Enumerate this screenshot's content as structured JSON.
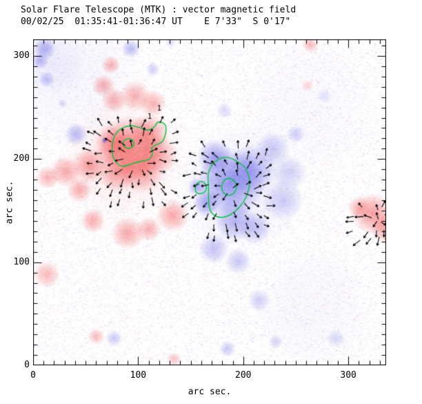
{
  "header": {
    "title": "Solar Flare Telescope (MTK) : vector magnetic field",
    "subtitle": "00/02/25  01:35:41-01:36:47 UT    E 7'33\"  S 0'17\""
  },
  "chart_data": {
    "type": "heatmap",
    "subtype": "vector-magnetogram",
    "title": "Solar Flare Telescope (MTK) : vector magnetic field",
    "subtitle": "00/02/25  01:35:41-01:36:47 UT    E 7'33\"  S 0'17\"",
    "xlabel": "arc sec.",
    "ylabel": "arc sec.",
    "xlim": [
      0,
      336
    ],
    "ylim": [
      0,
      316
    ],
    "xticks": [
      0,
      100,
      200,
      300
    ],
    "yticks": [
      0,
      100,
      200,
      300
    ],
    "minor_tick_step": 10,
    "grid": false,
    "legend": "none",
    "colors": {
      "positive_polarity": "#f04040",
      "negative_polarity": "#5454e4",
      "contour": "#00c33c",
      "vectors": "#000000",
      "axis": "#000000",
      "background": "#ffffff"
    },
    "blobs_format": [
      "x_arcsec",
      "y_arcsec",
      "radius_arcsec",
      "alpha"
    ],
    "positive_blobs": [
      [
        93,
        210,
        32,
        0.55
      ],
      [
        110,
        224,
        20,
        0.45
      ],
      [
        77,
        214,
        20,
        0.5
      ],
      [
        103,
        190,
        23,
        0.5
      ],
      [
        119,
        204,
        19,
        0.42
      ],
      [
        80,
        187,
        19,
        0.45
      ],
      [
        74,
        291,
        9,
        0.4
      ],
      [
        67,
        271,
        11,
        0.42
      ],
      [
        77,
        257,
        12,
        0.42
      ],
      [
        97,
        261,
        15,
        0.4
      ],
      [
        114,
        254,
        13,
        0.4
      ],
      [
        54,
        194,
        17,
        0.5
      ],
      [
        31,
        188,
        15,
        0.45
      ],
      [
        14,
        182,
        11,
        0.4
      ],
      [
        44,
        170,
        12,
        0.42
      ],
      [
        57,
        140,
        12,
        0.42
      ],
      [
        90,
        128,
        16,
        0.45
      ],
      [
        110,
        132,
        12,
        0.4
      ],
      [
        133,
        145,
        16,
        0.45
      ],
      [
        13,
        88,
        13,
        0.35
      ],
      [
        60,
        28,
        8,
        0.35
      ],
      [
        134,
        6,
        7,
        0.3
      ],
      [
        264,
        311,
        8,
        0.35
      ],
      [
        261,
        271,
        6,
        0.22
      ],
      [
        323,
        147,
        20,
        0.5
      ],
      [
        336,
        133,
        15,
        0.45
      ],
      [
        310,
        153,
        11,
        0.35
      ],
      [
        87,
        200,
        62,
        0.1
      ]
    ],
    "negative_blobs": [
      [
        188,
        177,
        33,
        0.6
      ],
      [
        173,
        202,
        17,
        0.5
      ],
      [
        208,
        190,
        24,
        0.45
      ],
      [
        228,
        210,
        17,
        0.3
      ],
      [
        192,
        140,
        20,
        0.42
      ],
      [
        211,
        133,
        16,
        0.35
      ],
      [
        172,
        113,
        15,
        0.35
      ],
      [
        195,
        101,
        13,
        0.32
      ],
      [
        238,
        160,
        20,
        0.28
      ],
      [
        244,
        187,
        17,
        0.25
      ],
      [
        165,
        157,
        13,
        0.5
      ],
      [
        156,
        173,
        9,
        0.45
      ],
      [
        68,
        218,
        3,
        0.85
      ],
      [
        11,
        307,
        11,
        0.45
      ],
      [
        7,
        295,
        8,
        0.4
      ],
      [
        13,
        277,
        8,
        0.35
      ],
      [
        41,
        224,
        11,
        0.4
      ],
      [
        28,
        254,
        5,
        0.2
      ],
      [
        93,
        307,
        9,
        0.4
      ],
      [
        114,
        287,
        7,
        0.28
      ],
      [
        131,
        313,
        5,
        0.22
      ],
      [
        182,
        247,
        8,
        0.22
      ],
      [
        250,
        224,
        9,
        0.28
      ],
      [
        277,
        261,
        7,
        0.18
      ],
      [
        215,
        63,
        11,
        0.28
      ],
      [
        185,
        16,
        8,
        0.32
      ],
      [
        231,
        23,
        7,
        0.24
      ],
      [
        288,
        26,
        9,
        0.22
      ],
      [
        77,
        26,
        8,
        0.32
      ],
      [
        198,
        172,
        62,
        0.1
      ],
      [
        18,
        294,
        36,
        0.08
      ],
      [
        265,
        55,
        60,
        0.04
      ],
      [
        40,
        280,
        70,
        0.05
      ],
      [
        260,
        250,
        70,
        0.03
      ]
    ],
    "contours": {
      "level_label": "1",
      "label_positions": [
        [
          120,
          247
        ],
        [
          111,
          239
        ]
      ],
      "paths": [
        {
          "name": "positive-outer",
          "points": [
            [
              75,
              208
            ],
            [
              76,
              220
            ],
            [
              81,
              228
            ],
            [
              91,
              233
            ],
            [
              101,
              231
            ],
            [
              109,
              227
            ],
            [
              116,
              231
            ],
            [
              118,
              236
            ],
            [
              123,
              236
            ],
            [
              127,
              232
            ],
            [
              126,
              223
            ],
            [
              123,
              216
            ],
            [
              117,
              214
            ],
            [
              112,
              211
            ],
            [
              114,
              206
            ],
            [
              112,
              200
            ],
            [
              104,
              198
            ],
            [
              95,
              196
            ],
            [
              85,
              192
            ],
            [
              79,
              196
            ],
            [
              76,
              202
            ]
          ]
        },
        {
          "name": "positive-inner",
          "points": [
            [
              85,
              215
            ],
            [
              87,
              219
            ],
            [
              93,
              220
            ],
            [
              96,
              217
            ],
            [
              96,
              213
            ],
            [
              92,
              210
            ],
            [
              87,
              211
            ]
          ]
        },
        {
          "name": "negative-outer",
          "points": [
            [
              167,
              175
            ],
            [
              166,
              186
            ],
            [
              171,
              196
            ],
            [
              178,
              201
            ],
            [
              186,
              202
            ],
            [
              194,
              198
            ],
            [
              202,
              192
            ],
            [
              206,
              183
            ],
            [
              206,
              173
            ],
            [
              203,
              163
            ],
            [
              198,
              155
            ],
            [
              192,
              149
            ],
            [
              185,
              144
            ],
            [
              176,
              143
            ],
            [
              169,
              148
            ],
            [
              167,
              156
            ],
            [
              167,
              165
            ]
          ]
        },
        {
          "name": "negative-lobe",
          "points": [
            [
              154,
              172
            ],
            [
              156,
              177
            ],
            [
              161,
              179
            ],
            [
              165,
              175
            ],
            [
              165,
              169
            ],
            [
              160,
              166
            ],
            [
              155,
              167
            ]
          ]
        },
        {
          "name": "negative-inner",
          "points": [
            [
              179,
              172
            ],
            [
              181,
              179
            ],
            [
              186,
              182
            ],
            [
              192,
              179
            ],
            [
              194,
              173
            ],
            [
              192,
              167
            ],
            [
              186,
              164
            ],
            [
              181,
              167
            ]
          ]
        }
      ]
    },
    "vector_field": {
      "style": "short black arrows (transverse field direction)",
      "groups": [
        {
          "name": "positive-region",
          "cx": 97,
          "cy": 200,
          "x0": 53,
          "x1": 140,
          "y0": 157,
          "y1": 240,
          "step": 10,
          "min_r": 10,
          "max_r": 53,
          "len": 7,
          "swirl": 0
        },
        {
          "name": "negative-region",
          "cx": 189,
          "cy": 173,
          "x0": 144,
          "x1": 232,
          "y0": 125,
          "y1": 222,
          "step": 10,
          "min_r": 4,
          "max_r": 53,
          "len": 7,
          "swirl": -0.25
        },
        {
          "name": "right-edge-region",
          "cx": 330,
          "cy": 141,
          "x0": 300,
          "x1": 336,
          "y0": 119,
          "y1": 161,
          "step": 9,
          "min_r": 4,
          "max_r": 32,
          "len": 7,
          "swirl": 0
        }
      ]
    }
  }
}
